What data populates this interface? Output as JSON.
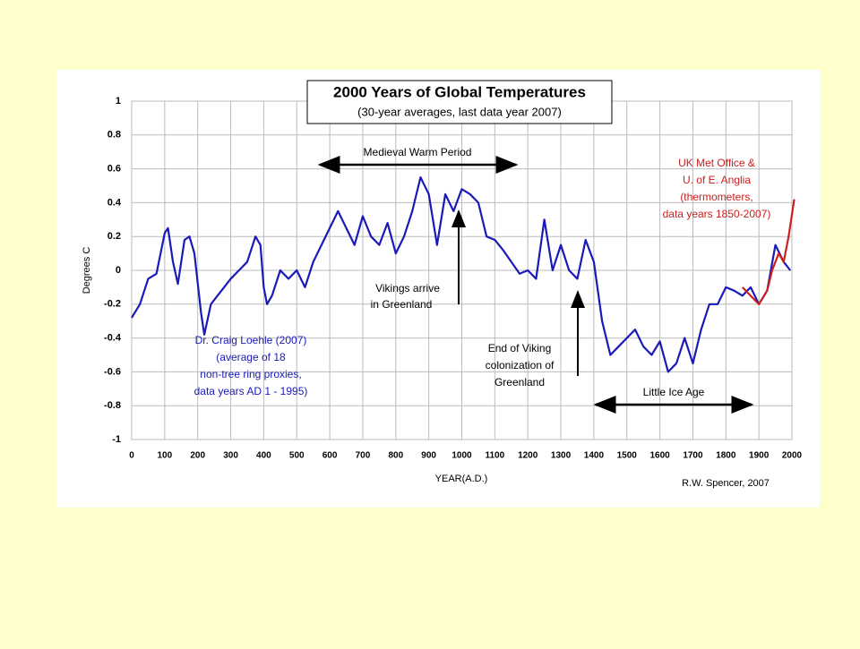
{
  "chart_data": {
    "type": "line",
    "title": "2000 Years of Global Temperatures",
    "subtitle": "(30-year averages, last data year 2007)",
    "xlabel": "YEAR(A.D.)",
    "ylabel": "Degrees C",
    "credit": "R.W. Spencer, 2007",
    "xlim": [
      0,
      2000
    ],
    "ylim": [
      -1,
      1
    ],
    "xticks": [
      0,
      100,
      200,
      300,
      400,
      500,
      600,
      700,
      800,
      900,
      1000,
      1100,
      1200,
      1300,
      1400,
      1500,
      1600,
      1700,
      1800,
      1900,
      2000
    ],
    "yticks": [
      -1,
      -0.8,
      -0.6,
      -0.4,
      -0.2,
      0,
      0.2,
      0.4,
      0.6,
      0.8,
      1
    ],
    "grid": true,
    "series": [
      {
        "name": "Dr. Craig Loehle (2007)",
        "color": "#1a1ab8",
        "x": [
          0,
          25,
          50,
          75,
          100,
          110,
          125,
          140,
          160,
          175,
          190,
          210,
          220,
          240,
          260,
          280,
          300,
          325,
          350,
          375,
          390,
          400,
          410,
          425,
          450,
          475,
          500,
          525,
          550,
          575,
          600,
          625,
          650,
          675,
          700,
          725,
          750,
          775,
          800,
          825,
          850,
          875,
          900,
          925,
          950,
          975,
          1000,
          1025,
          1050,
          1075,
          1100,
          1125,
          1150,
          1175,
          1200,
          1225,
          1250,
          1275,
          1300,
          1325,
          1350,
          1375,
          1400,
          1425,
          1450,
          1475,
          1500,
          1525,
          1550,
          1575,
          1600,
          1625,
          1650,
          1675,
          1700,
          1725,
          1750,
          1775,
          1800,
          1825,
          1850,
          1875,
          1900,
          1925,
          1950,
          1975,
          1995
        ],
        "values": [
          -0.28,
          -0.2,
          -0.05,
          -0.02,
          0.22,
          0.25,
          0.05,
          -0.08,
          0.18,
          0.2,
          0.1,
          -0.25,
          -0.38,
          -0.2,
          -0.15,
          -0.1,
          -0.05,
          0.0,
          0.05,
          0.2,
          0.15,
          -0.1,
          -0.2,
          -0.15,
          0.0,
          -0.05,
          0.0,
          -0.1,
          0.05,
          0.15,
          0.25,
          0.35,
          0.25,
          0.15,
          0.32,
          0.2,
          0.15,
          0.28,
          0.1,
          0.2,
          0.35,
          0.55,
          0.45,
          0.15,
          0.45,
          0.35,
          0.48,
          0.45,
          0.4,
          0.2,
          0.18,
          0.12,
          0.05,
          -0.02,
          0.0,
          -0.05,
          0.3,
          0.0,
          0.15,
          0.0,
          -0.05,
          0.18,
          0.05,
          -0.3,
          -0.5,
          -0.45,
          -0.4,
          -0.35,
          -0.45,
          -0.5,
          -0.42,
          -0.6,
          -0.55,
          -0.4,
          -0.55,
          -0.35,
          -0.2,
          -0.2,
          -0.1,
          -0.12,
          -0.15,
          -0.1,
          -0.2,
          -0.12,
          0.15,
          0.05,
          0.0
        ]
      },
      {
        "name": "UK Met Office & U. of E. Anglia",
        "color": "#cc2020",
        "x": [
          1850,
          1875,
          1900,
          1925,
          1940,
          1960,
          1975,
          1990,
          2007
        ],
        "values": [
          -0.1,
          -0.15,
          -0.2,
          -0.12,
          0.0,
          0.1,
          0.05,
          0.2,
          0.42
        ]
      }
    ],
    "annotations": [
      {
        "lines": [
          "Medieval Warm Period"
        ]
      },
      {
        "lines": [
          "Little Ice Age"
        ]
      },
      {
        "lines": [
          "Vikings arrive",
          "in Greenland"
        ]
      },
      {
        "lines": [
          "End of Viking",
          "colonization of",
          "Greenland"
        ]
      },
      {
        "lines": [
          "Dr. Craig Loehle (2007)",
          "(average of 18",
          "non-tree ring proxies,",
          "data years AD 1 - 1995)"
        ],
        "color": "#1a1ab8"
      },
      {
        "lines": [
          "UK Met Office &",
          "U. of E. Anglia",
          "(thermometers,",
          "data years 1850-2007)"
        ],
        "color": "#cc2020"
      }
    ]
  }
}
